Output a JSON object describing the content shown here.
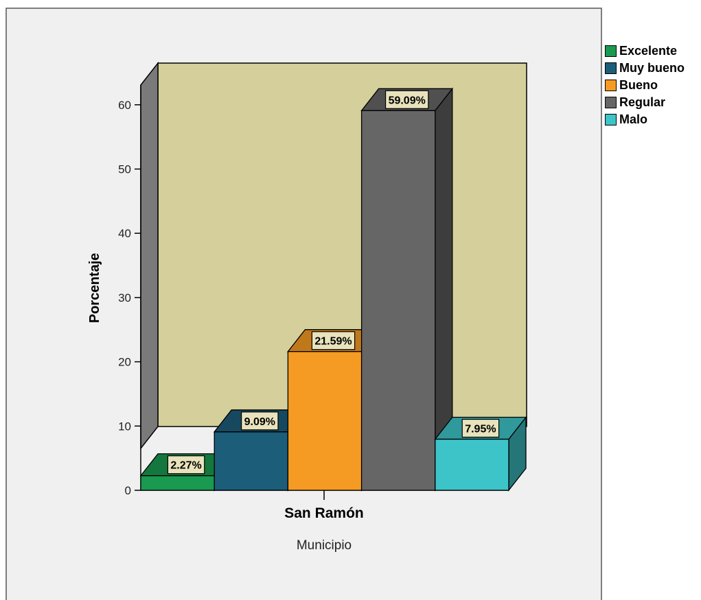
{
  "chart_data": {
    "type": "bar",
    "xlabel": "Municipio",
    "ylabel": "Porcentaje",
    "category": "San Ramón",
    "ylim": [
      0,
      63
    ],
    "yticks": [
      0,
      10,
      20,
      30,
      40,
      50,
      60
    ],
    "grid": false,
    "legend_position": "top-right",
    "series": [
      {
        "name": "Excelente",
        "value": 2.27,
        "label": "2.27%",
        "color": "#1a9950"
      },
      {
        "name": "Muy bueno",
        "value": 9.09,
        "label": "9.09%",
        "color": "#1c5d7a"
      },
      {
        "name": "Bueno",
        "value": 21.59,
        "label": "21.59%",
        "color": "#f59b23"
      },
      {
        "name": "Regular",
        "value": 59.09,
        "label": "59.09%",
        "color": "#666666"
      },
      {
        "name": "Malo",
        "value": 7.95,
        "label": "7.95%",
        "color": "#3dc4c8"
      }
    ],
    "colors": {
      "plot_background": "#d4cf9b",
      "outer_background": "#f0f0f0",
      "side_wall": "#7a7a7a",
      "label_background": "#e8e3bc"
    }
  }
}
